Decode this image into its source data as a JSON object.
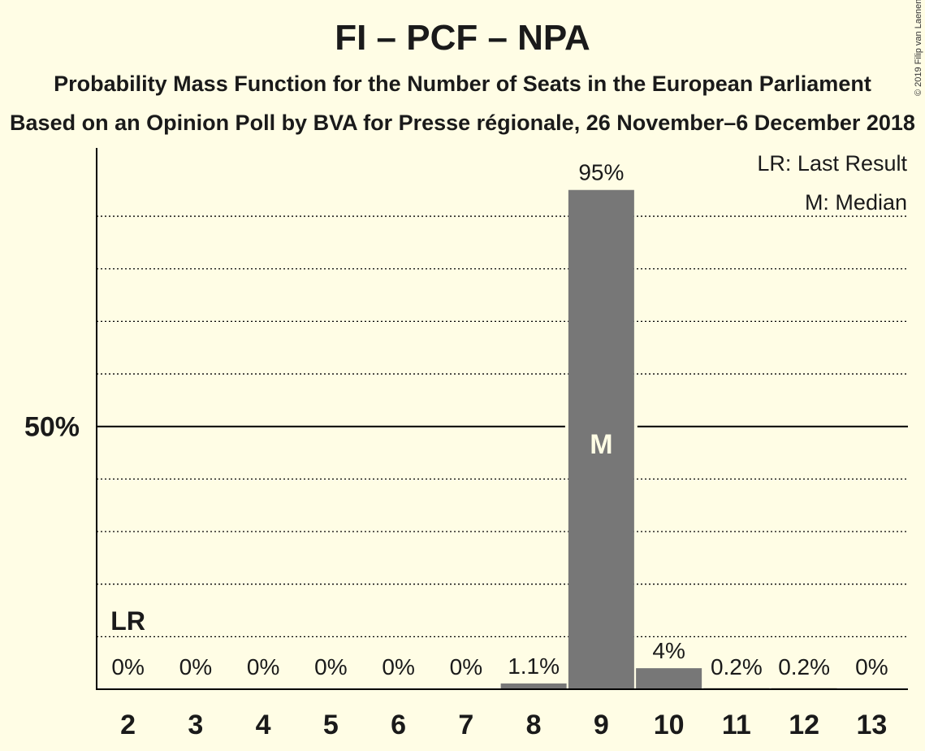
{
  "chart_data": {
    "type": "bar",
    "title": "FI – PCF – NPA",
    "subtitle": "Probability Mass Function for the Number of Seats in the European Parliament",
    "subtitle2": "Based on an Opinion Poll by BVA for Presse régionale, 26 November–6 December 2018",
    "copyright": "© 2019 Filip van Laenen",
    "categories": [
      "2",
      "3",
      "4",
      "5",
      "6",
      "7",
      "8",
      "9",
      "10",
      "11",
      "12",
      "13"
    ],
    "values": [
      0,
      0,
      0,
      0,
      0,
      0,
      1.1,
      95,
      4,
      0.2,
      0.2,
      0
    ],
    "value_labels": [
      "0%",
      "0%",
      "0%",
      "0%",
      "0%",
      "0%",
      "1.1%",
      "95%",
      "4%",
      "0.2%",
      "0.2%",
      "0%"
    ],
    "ylim": [
      0,
      103
    ],
    "y_tick_label": "50%",
    "y_tick_value": 50,
    "gridlines": [
      10,
      20,
      30,
      40,
      60,
      70,
      80,
      90
    ],
    "last_result_category": "2",
    "last_result_label": "LR",
    "median_category": "9",
    "median_label": "M",
    "legend": [
      "LR: Last Result",
      "M: Median"
    ],
    "colors": {
      "bar": "#777777",
      "background": "#FFFDE5",
      "axis": "#000000",
      "median_text": "#FFFDE5"
    }
  }
}
